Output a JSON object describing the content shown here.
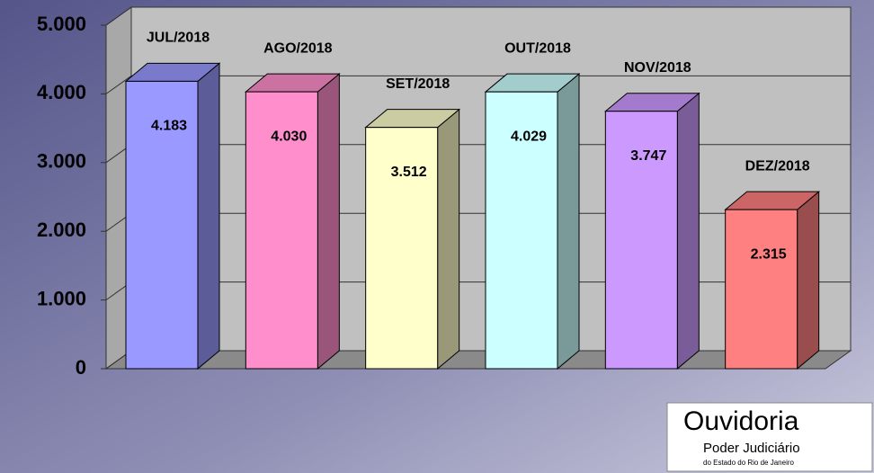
{
  "chart_data": {
    "type": "bar3d",
    "categories": [
      "JUL/2018",
      "AGO/2018",
      "SET/2018",
      "OUT/2018",
      "NOV/2018",
      "DEZ/2018"
    ],
    "values": [
      4183,
      4030,
      3512,
      4029,
      3747,
      2315
    ],
    "value_labels": [
      "4.183",
      "4.030",
      "3.512",
      "4.029",
      "3.747",
      "2.315"
    ],
    "colors": [
      "#9999ff",
      "#ff8fcc",
      "#ffffcc",
      "#ccffff",
      "#cc99ff",
      "#ff8080"
    ],
    "ylim": [
      0,
      5000
    ],
    "yticks": [
      0,
      {
        "value": 1000,
        "label": "1.000"
      },
      {
        "value": 2000,
        "label": "2.000"
      },
      {
        "value": 3000,
        "label": "3.000"
      },
      {
        "value": 4000,
        "label": "4.000"
      },
      {
        "value": 5000,
        "label": "5.000"
      }
    ],
    "grid": true
  },
  "logo": {
    "title": "Ouvidoria",
    "line1": "Poder Judiciário",
    "line2": "do Estado do Rio de Janeiro"
  }
}
